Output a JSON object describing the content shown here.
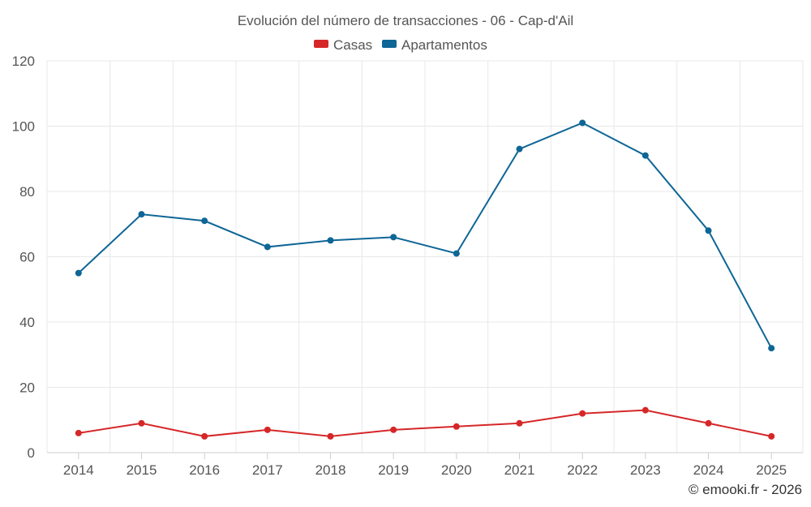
{
  "chart_data": {
    "type": "line",
    "title": "Evolución del número de transacciones - 06 - Cap-d'Ail",
    "categories": [
      "2014",
      "2015",
      "2016",
      "2017",
      "2018",
      "2019",
      "2020",
      "2021",
      "2022",
      "2023",
      "2024",
      "2025"
    ],
    "series": [
      {
        "name": "Casas",
        "color": "#d62728",
        "values": [
          6,
          9,
          5,
          7,
          5,
          7,
          8,
          9,
          12,
          13,
          9,
          5
        ]
      },
      {
        "name": "Apartamentos",
        "color": "#0e6696",
        "values": [
          55,
          73,
          71,
          63,
          65,
          66,
          61,
          93,
          101,
          91,
          68,
          32
        ]
      }
    ],
    "ylim": [
      0,
      120
    ],
    "yticks": [
      0,
      20,
      40,
      60,
      80,
      100,
      120
    ],
    "xlabel": "",
    "ylabel": "",
    "grid": true,
    "legend_position": "top-center"
  },
  "footer": {
    "credit": "© emooki.fr - 2026"
  }
}
